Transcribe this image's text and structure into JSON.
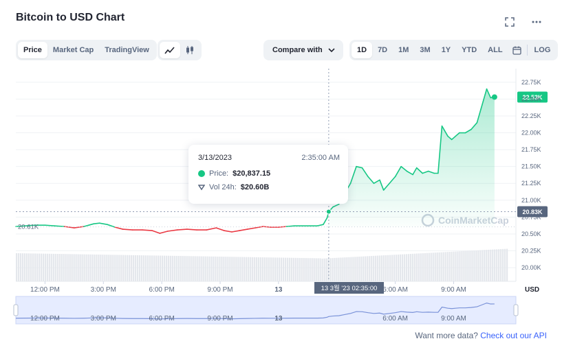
{
  "header": {
    "title": "Bitcoin to USD Chart",
    "fullscreen_icon": "expand-icon",
    "more_icon": "ellipsis-icon"
  },
  "toolbar": {
    "chart_types": [
      "Price",
      "Market Cap",
      "TradingView"
    ],
    "active_chart_type": "Price",
    "views": [
      {
        "name": "line-chart-icon",
        "active": true
      },
      {
        "name": "candlestick-icon",
        "active": false
      }
    ],
    "compare_label": "Compare with",
    "ranges": [
      "1D",
      "7D",
      "1M",
      "3M",
      "1Y",
      "YTD",
      "ALL"
    ],
    "active_range": "1D",
    "calendar_icon": "calendar-icon",
    "log_label": "LOG"
  },
  "tooltip": {
    "date": "3/13/2023",
    "time": "2:35:00 AM",
    "price_label": "Price:",
    "price_value": "$20,837.15",
    "volume_label": "Vol 24h:",
    "volume_value": "$20.60B"
  },
  "footer": {
    "text": "Want more data?",
    "link": "Check out our API"
  },
  "colors": {
    "up": "#16c784",
    "down": "#ea3943",
    "accent": "#3861fb",
    "grid": "#eff2f5",
    "muted": "#58667e"
  },
  "chart_data": {
    "type": "line",
    "title": "Bitcoin to USD Chart",
    "ylabel": "USD",
    "ylim": [
      19950,
      22850
    ],
    "y_ticks": [
      20000,
      20250,
      20500,
      20750,
      21000,
      21250,
      21500,
      21750,
      22000,
      22250,
      22500,
      22750
    ],
    "y_tick_labels": [
      "20.00K",
      "20.25K",
      "20.50K",
      "20.75K",
      "21.00K",
      "21.25K",
      "21.50K",
      "21.75K",
      "22.00K",
      "22.25K",
      "22.50K",
      "22.75K"
    ],
    "x_tick_labels": [
      "12:00 PM",
      "3:00 PM",
      "6:00 PM",
      "9:00 PM",
      "13",
      "6:00 AM",
      "9:00 AM"
    ],
    "x_tick_hours": [
      12,
      15,
      18,
      21,
      24,
      30,
      33
    ],
    "x_unit": "hours since 0:00 on the day before 13",
    "reference_value": 20610,
    "reference_label": "20.61K",
    "current_value": 22530,
    "current_label": "22.53K",
    "hover_value": 20830,
    "hover_label": "20.83K",
    "hover_x_label": "13 3월 '23  02:35:00",
    "hover_hour": 26.58,
    "watermark": "CoinMarketCap",
    "series": [
      {
        "values": [
          [
            10.5,
            20610
          ],
          [
            11.0,
            20620
          ],
          [
            11.5,
            20630
          ],
          [
            12.0,
            20630
          ],
          [
            12.5,
            20620
          ],
          [
            13.0,
            20610
          ],
          [
            13.5,
            20590
          ],
          [
            14.0,
            20610
          ],
          [
            14.5,
            20650
          ],
          [
            14.8,
            20660
          ],
          [
            15.2,
            20640
          ],
          [
            15.6,
            20600
          ],
          [
            16.0,
            20570
          ],
          [
            16.5,
            20560
          ],
          [
            17.0,
            20560
          ],
          [
            17.5,
            20550
          ],
          [
            17.9,
            20510
          ],
          [
            18.3,
            20540
          ],
          [
            18.8,
            20560
          ],
          [
            19.3,
            20570
          ],
          [
            19.8,
            20560
          ],
          [
            20.3,
            20560
          ],
          [
            20.8,
            20590
          ],
          [
            21.2,
            20550
          ],
          [
            21.6,
            20530
          ],
          [
            22.0,
            20550
          ],
          [
            22.4,
            20570
          ],
          [
            22.8,
            20590
          ],
          [
            23.2,
            20610
          ],
          [
            23.6,
            20600
          ],
          [
            24.0,
            20600
          ],
          [
            24.4,
            20610
          ],
          [
            24.8,
            20620
          ],
          [
            25.2,
            20620
          ],
          [
            25.6,
            20620
          ],
          [
            26.0,
            20620
          ],
          [
            26.3,
            20640
          ],
          [
            26.5,
            20740
          ],
          [
            26.58,
            20830
          ],
          [
            26.8,
            20900
          ],
          [
            27.1,
            20940
          ],
          [
            27.4,
            21100
          ],
          [
            27.7,
            21250
          ],
          [
            28.0,
            21500
          ],
          [
            28.3,
            21480
          ],
          [
            28.6,
            21350
          ],
          [
            28.9,
            21250
          ],
          [
            29.2,
            21300
          ],
          [
            29.4,
            21150
          ],
          [
            29.7,
            21250
          ],
          [
            30.0,
            21350
          ],
          [
            30.3,
            21500
          ],
          [
            30.6,
            21430
          ],
          [
            30.9,
            21380
          ],
          [
            31.1,
            21480
          ],
          [
            31.4,
            21400
          ],
          [
            31.7,
            21430
          ],
          [
            32.0,
            21400
          ],
          [
            32.2,
            21400
          ],
          [
            32.4,
            22100
          ],
          [
            32.7,
            21950
          ],
          [
            32.9,
            21900
          ],
          [
            33.1,
            21950
          ],
          [
            33.3,
            22000
          ],
          [
            33.6,
            22000
          ],
          [
            33.9,
            22050
          ],
          [
            34.2,
            22150
          ],
          [
            34.4,
            22350
          ],
          [
            34.7,
            22650
          ],
          [
            34.9,
            22520
          ],
          [
            35.1,
            22530
          ]
        ]
      }
    ]
  }
}
